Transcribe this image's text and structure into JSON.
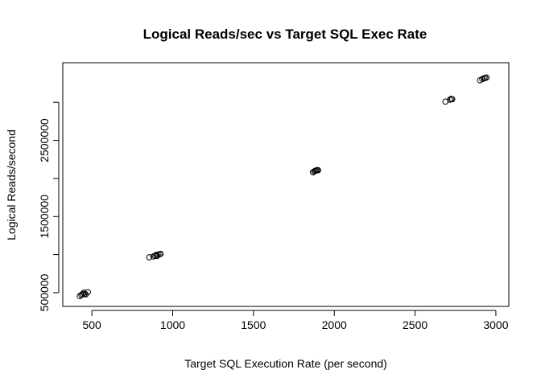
{
  "chart_data": {
    "type": "scatter",
    "title": "Logical Reads/sec vs Target SQL Exec Rate",
    "xlabel": "Target SQL Execution Rate (per second)",
    "ylabel": "Logical Reads/second",
    "xlim": [
      320,
      3080
    ],
    "ylim": [
      320000,
      3520000
    ],
    "xticks": [
      500,
      1000,
      1500,
      2000,
      2500,
      3000
    ],
    "xtick_labels": [
      "500",
      "1000",
      "1500",
      "2000",
      "2500",
      "3000"
    ],
    "yticks": [
      500000,
      1000000,
      1500000,
      2000000,
      2500000,
      3000000
    ],
    "ytick_labels": [
      "500000",
      "",
      "1500000",
      "",
      "2500000",
      ""
    ],
    "grid": false,
    "marker": "open-circle",
    "points": [
      {
        "x": 425,
        "y": 455000
      },
      {
        "x": 435,
        "y": 470000
      },
      {
        "x": 442,
        "y": 480000
      },
      {
        "x": 450,
        "y": 500000
      },
      {
        "x": 455,
        "y": 485000
      },
      {
        "x": 462,
        "y": 478000
      },
      {
        "x": 475,
        "y": 505000
      },
      {
        "x": 855,
        "y": 965000
      },
      {
        "x": 880,
        "y": 975000
      },
      {
        "x": 890,
        "y": 985000
      },
      {
        "x": 898,
        "y": 995000
      },
      {
        "x": 903,
        "y": 982000
      },
      {
        "x": 908,
        "y": 1000000
      },
      {
        "x": 918,
        "y": 1005000
      },
      {
        "x": 925,
        "y": 1010000
      },
      {
        "x": 1868,
        "y": 2080000
      },
      {
        "x": 1876,
        "y": 2092000
      },
      {
        "x": 1882,
        "y": 2100000
      },
      {
        "x": 1888,
        "y": 2105000
      },
      {
        "x": 1894,
        "y": 2110000
      },
      {
        "x": 1900,
        "y": 2108000
      },
      {
        "x": 2688,
        "y": 3010000
      },
      {
        "x": 2716,
        "y": 3035000
      },
      {
        "x": 2724,
        "y": 3045000
      },
      {
        "x": 2730,
        "y": 3040000
      },
      {
        "x": 2902,
        "y": 3290000
      },
      {
        "x": 2916,
        "y": 3305000
      },
      {
        "x": 2926,
        "y": 3315000
      },
      {
        "x": 2934,
        "y": 3320000
      },
      {
        "x": 2942,
        "y": 3325000
      }
    ]
  }
}
